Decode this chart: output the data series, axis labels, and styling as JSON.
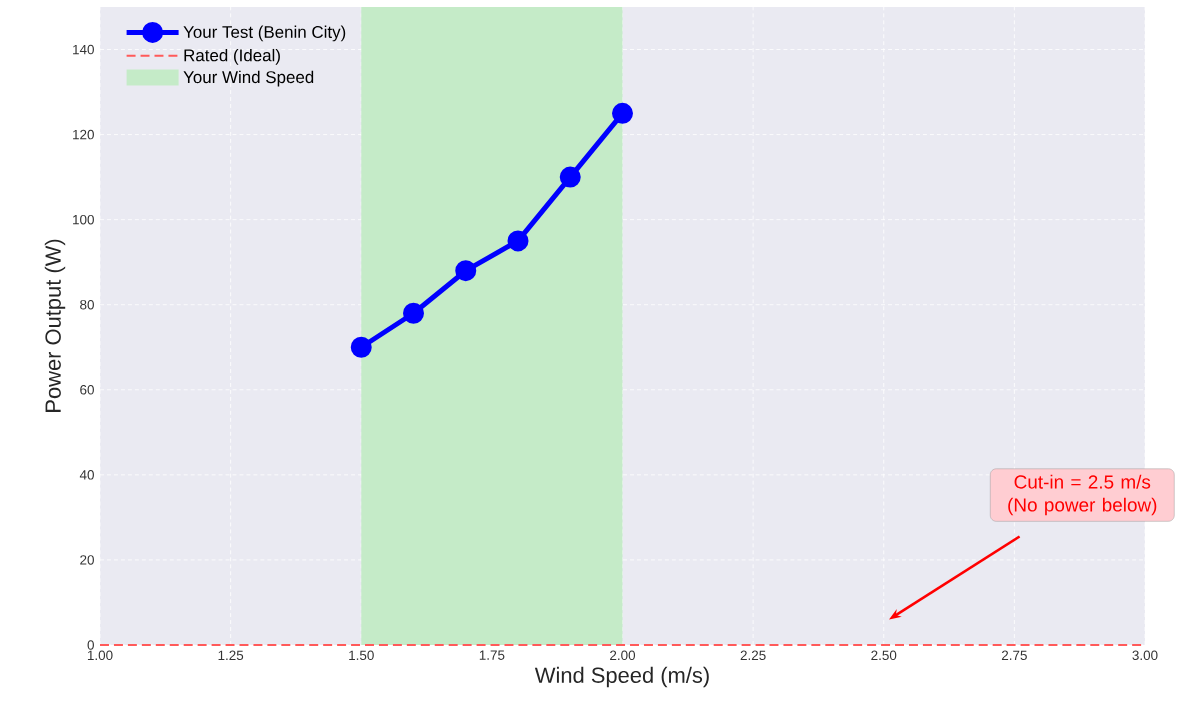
{
  "chart_data": {
    "type": "line",
    "xlabel": "Wind Speed (m/s)",
    "ylabel": "Power Output (W)",
    "series": [
      {
        "name": "Your Test (Benin City)",
        "color": "#0000ff",
        "x": [
          1.5,
          1.6,
          1.7,
          1.8,
          1.9,
          2.0
        ],
        "values": [
          70,
          78,
          88,
          95,
          110,
          125
        ],
        "marker": "circle",
        "line_style": "solid"
      },
      {
        "name": "Rated (Ideal)",
        "color": "#ff5a5a",
        "x": [
          1.0,
          3.0
        ],
        "values": [
          0,
          0
        ],
        "marker": "none",
        "line_style": "dashed"
      }
    ],
    "bands": [
      {
        "axis": "x",
        "from": 1.5,
        "to": 2.0,
        "label": "Your Wind Speed",
        "color": "#c5ebc8"
      }
    ],
    "annotations": [
      "Cut-in = 2.5 m/s (No power below)"
    ],
    "xlim": [
      1.0,
      3.0
    ],
    "xticks": [
      {
        "value": 1.0,
        "label": "1.00"
      },
      {
        "value": 1.25,
        "label": "1.25"
      },
      {
        "value": 1.5,
        "label": "1.50"
      },
      {
        "value": 1.75,
        "label": "1.75"
      },
      {
        "value": 2.0,
        "label": "2.00"
      },
      {
        "value": 2.25,
        "label": "2.25"
      },
      {
        "value": 2.5,
        "label": "2.50"
      },
      {
        "value": 2.75,
        "label": "2.75"
      },
      {
        "value": 3.0,
        "label": "3.00"
      }
    ],
    "ylim": [
      0,
      150
    ],
    "yticks": [
      0,
      20,
      40,
      60,
      80,
      100,
      120,
      140
    ],
    "grid": true,
    "legend": "top left"
  }
}
